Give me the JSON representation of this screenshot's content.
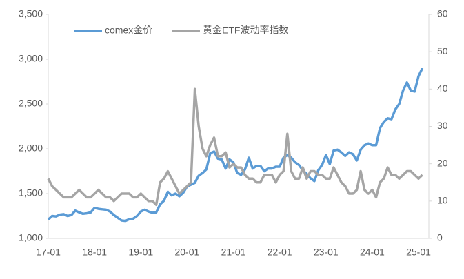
{
  "chart_data": {
    "type": "line",
    "categories": [
      "17-01",
      null,
      null,
      null,
      null,
      null,
      null,
      null,
      null,
      null,
      null,
      null,
      "18-01",
      null,
      null,
      null,
      null,
      null,
      null,
      null,
      null,
      null,
      null,
      null,
      "19-01",
      null,
      null,
      null,
      null,
      null,
      null,
      null,
      null,
      null,
      null,
      null,
      "20-01",
      null,
      null,
      null,
      null,
      null,
      null,
      null,
      null,
      null,
      null,
      null,
      "21-01",
      null,
      null,
      null,
      null,
      null,
      null,
      null,
      null,
      null,
      null,
      null,
      "22-01",
      null,
      null,
      null,
      null,
      null,
      null,
      null,
      null,
      null,
      null,
      null,
      "23-01",
      null,
      null,
      null,
      null,
      null,
      null,
      null,
      null,
      null,
      null,
      null,
      "24-01",
      null,
      null,
      null,
      null,
      null,
      null,
      null,
      null,
      null,
      null,
      null,
      "25-01",
      null
    ],
    "series": [
      {
        "name": "comex金价",
        "color": "#5b9bd5",
        "values": [
          1210,
          1250,
          1245,
          1265,
          1270,
          1250,
          1260,
          1310,
          1290,
          1275,
          1280,
          1290,
          1340,
          1330,
          1325,
          1320,
          1300,
          1260,
          1230,
          1200,
          1195,
          1215,
          1220,
          1250,
          1300,
          1320,
          1300,
          1285,
          1290,
          1380,
          1420,
          1520,
          1480,
          1500,
          1470,
          1510,
          1580,
          1600,
          1620,
          1700,
          1730,
          1770,
          1950,
          1970,
          1890,
          1880,
          1780,
          1880,
          1850,
          1730,
          1710,
          1770,
          1900,
          1780,
          1810,
          1810,
          1750,
          1780,
          1780,
          1800,
          1800,
          1900,
          1930,
          1900,
          1850,
          1820,
          1760,
          1720,
          1670,
          1640,
          1760,
          1820,
          1930,
          1830,
          1980,
          1990,
          1960,
          1920,
          1960,
          1940,
          1870,
          1990,
          2040,
          2060,
          2040,
          2040,
          2230,
          2300,
          2340,
          2330,
          2440,
          2500,
          2650,
          2740,
          2650,
          2640,
          2810,
          2900
        ]
      },
      {
        "name": "黄金ETF波动率指数",
        "color": "#a5a5a5",
        "axis": "y2",
        "values": [
          16,
          14,
          13,
          12,
          11,
          11,
          11,
          12,
          13,
          12,
          11,
          11,
          12,
          13,
          12,
          11,
          11,
          10,
          11,
          12,
          12,
          12,
          11,
          11,
          12,
          11,
          10,
          10,
          9,
          15,
          16,
          18,
          16,
          14,
          12,
          13,
          14,
          15,
          40,
          30,
          24,
          22,
          25,
          27,
          22,
          22,
          23,
          19,
          20,
          19,
          19,
          17,
          16,
          16,
          15,
          15,
          17,
          17,
          17,
          15,
          17,
          18,
          28,
          18,
          16,
          16,
          19,
          16,
          18,
          18,
          17,
          17,
          16,
          16,
          19,
          17,
          15,
          14,
          12,
          12,
          13,
          18,
          13,
          12,
          13,
          11,
          15,
          16,
          19,
          17,
          17,
          16,
          17,
          18,
          18,
          17,
          16,
          17
        ]
      }
    ],
    "ylim": [
      1000,
      3500
    ],
    "yticks": [
      {
        "value": 1000,
        "label": "1,000"
      },
      {
        "value": 1500,
        "label": "1,500"
      },
      {
        "value": 2000,
        "label": "2,000"
      },
      {
        "value": 2500,
        "label": "2,500"
      },
      {
        "value": 3000,
        "label": "3,000"
      },
      {
        "value": 3500,
        "label": "3,500"
      }
    ],
    "y2lim": [
      0,
      60
    ],
    "y2ticks": [
      0,
      10,
      20,
      30,
      40,
      50,
      60
    ],
    "legend": "top"
  }
}
